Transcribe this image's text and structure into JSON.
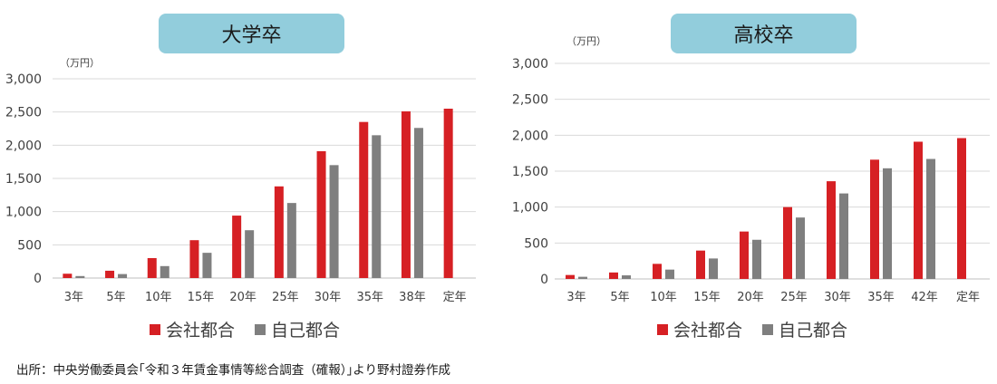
{
  "colors": {
    "company": "#d62024",
    "self": "#7f7f7f",
    "title_bg": "#92cddc",
    "grid": "#d9d9d9"
  },
  "legend": {
    "company": "会社都合",
    "self": "自己都合"
  },
  "source": "出所：中央労働委員会｢令和３年賃金事情等総合調査（確報）｣より野村證券作成",
  "chart_data": [
    {
      "type": "bar",
      "title": "大学卒",
      "unit": "（万円）",
      "categories": [
        "3年",
        "5年",
        "10年",
        "15年",
        "20年",
        "25年",
        "30年",
        "35年",
        "38年",
        "定年"
      ],
      "yticks": [
        "0",
        "500",
        "1,000",
        "1,500",
        "2,000",
        "2,500",
        "3,000"
      ],
      "ylim": [
        0,
        3000
      ],
      "series": [
        {
          "name": "会社都合",
          "values": [
            65,
            110,
            300,
            570,
            940,
            1380,
            1910,
            2350,
            2510,
            2550
          ]
        },
        {
          "name": "自己都合",
          "values": [
            30,
            60,
            180,
            380,
            720,
            1130,
            1700,
            2150,
            2260,
            null
          ]
        }
      ]
    },
    {
      "type": "bar",
      "title": "高校卒",
      "unit": "（万円）",
      "categories": [
        "3年",
        "5年",
        "10年",
        "15年",
        "20年",
        "25年",
        "30年",
        "35年",
        "42年",
        "定年"
      ],
      "yticks": [
        "0",
        "500",
        "1,000",
        "1,500",
        "2,000",
        "2,500",
        "3,000"
      ],
      "ylim": [
        0,
        3000
      ],
      "series": [
        {
          "name": "会社都合",
          "values": [
            55,
            90,
            210,
            395,
            660,
            1000,
            1360,
            1660,
            1910,
            1960
          ]
        },
        {
          "name": "自己都合",
          "values": [
            30,
            50,
            130,
            285,
            545,
            855,
            1190,
            1540,
            1670,
            null
          ]
        }
      ]
    }
  ]
}
